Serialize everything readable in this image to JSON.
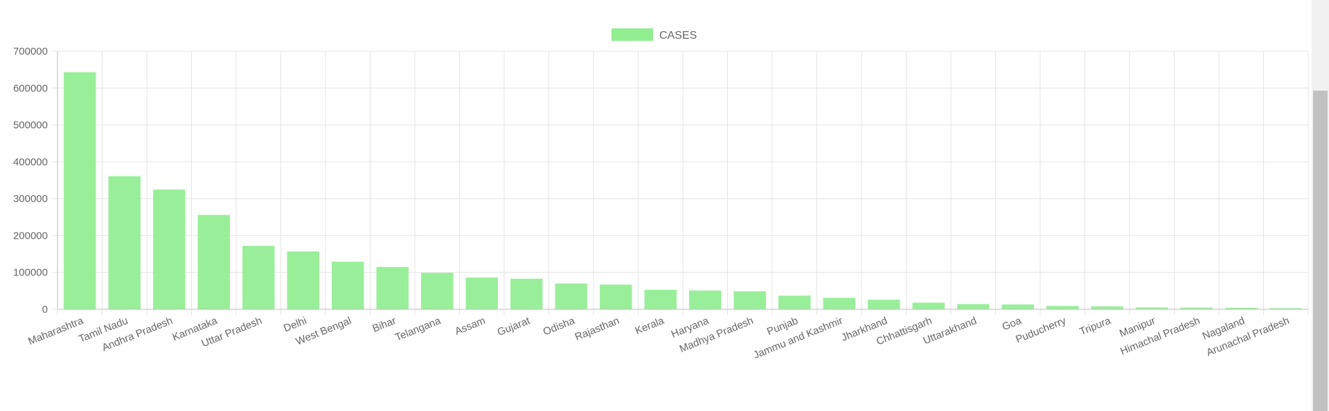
{
  "chart_data": {
    "type": "bar",
    "categories": [
      "Maharashtra",
      "Tamil Nadu",
      "Andhra Pradesh",
      "Karnataka",
      "Uttar Pradesh",
      "Delhi",
      "West Bengal",
      "Bihar",
      "Telangana",
      "Assam",
      "Gujarat",
      "Odisha",
      "Rajasthan",
      "Kerala",
      "Haryana",
      "Madhya Pradesh",
      "Punjab",
      "Jammu and Kashmir",
      "Jharkhand",
      "Chhattisgarh",
      "Uttarakhand",
      "Goa",
      "Puducherry",
      "Tripura",
      "Manipur",
      "Himachal Pradesh",
      "Nagaland",
      "Arunachal Pradesh"
    ],
    "series": [
      {
        "name": "CASES",
        "color": "#90ee90",
        "values": [
          643000,
          361000,
          325000,
          256000,
          172000,
          157000,
          129000,
          115000,
          99000,
          86000,
          83000,
          70000,
          67000,
          53000,
          51000,
          49000,
          37000,
          31000,
          26000,
          18000,
          14000,
          13000,
          9000,
          8000,
          5000,
          4500,
          4000,
          3000
        ]
      }
    ],
    "yticks": [
      "0",
      "100000",
      "200000",
      "300000",
      "400000",
      "500000",
      "600000",
      "700000"
    ],
    "ylim": [
      0,
      700000
    ],
    "grid": true,
    "legend_position": "top-center"
  }
}
